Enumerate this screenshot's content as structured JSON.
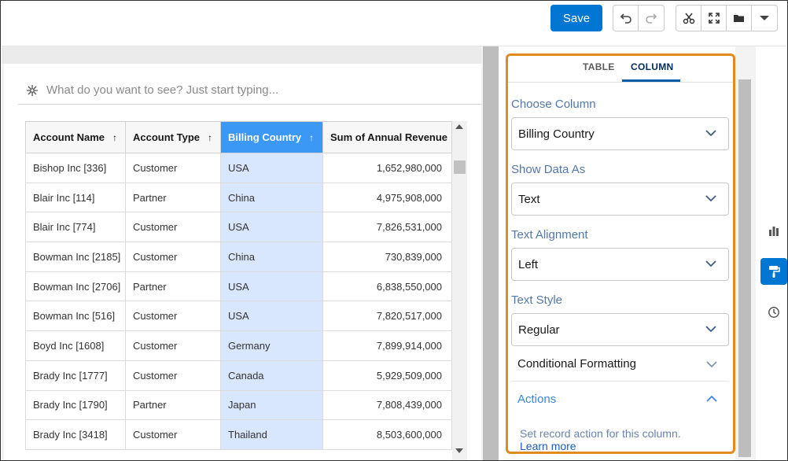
{
  "toolbar": {
    "save_label": "Save",
    "undo_icon": "undo-icon",
    "redo_icon": "redo-icon",
    "tools": [
      "cut-icon",
      "expand-icon",
      "folder-icon",
      "caret-down-icon"
    ]
  },
  "search": {
    "placeholder": "What do you want to see? Just start typing..."
  },
  "table": {
    "columns": [
      {
        "label": "Account Name",
        "sort": "↑"
      },
      {
        "label": "Account Type",
        "sort": "↑"
      },
      {
        "label": "Billing Country",
        "sort": "↑"
      },
      {
        "label": "Sum of Annual Revenue",
        "sort": ""
      }
    ],
    "rows": [
      [
        "Bishop Inc [336]",
        "Customer",
        "USA",
        "1,652,980,000"
      ],
      [
        "Blair Inc [114]",
        "Partner",
        "China",
        "4,975,908,000"
      ],
      [
        "Blair Inc [774]",
        "Customer",
        "USA",
        "7,826,531,000"
      ],
      [
        "Bowman Inc [2185]",
        "Customer",
        "China",
        "730,839,000"
      ],
      [
        "Bowman Inc [2706]",
        "Partner",
        "USA",
        "6,838,550,000"
      ],
      [
        "Bowman Inc [516]",
        "Customer",
        "USA",
        "7,820,517,000"
      ],
      [
        "Boyd Inc [1608]",
        "Customer",
        "Germany",
        "7,899,914,000"
      ],
      [
        "Brady Inc [1777]",
        "Customer",
        "Canada",
        "5,929,509,000"
      ],
      [
        "Brady Inc [1790]",
        "Partner",
        "Japan",
        "7,808,439,000"
      ],
      [
        "Brady Inc [3418]",
        "Customer",
        "Thailand",
        "8,503,600,000"
      ]
    ]
  },
  "panel": {
    "tabs": {
      "table": "TABLE",
      "column": "COLUMN"
    },
    "choose_column": {
      "label": "Choose Column",
      "value": "Billing Country"
    },
    "show_data_as": {
      "label": "Show Data As",
      "value": "Text"
    },
    "text_alignment": {
      "label": "Text Alignment",
      "value": "Left"
    },
    "text_style": {
      "label": "Text Style",
      "value": "Regular"
    },
    "conditional_formatting": "Conditional Formatting",
    "actions": "Actions",
    "actions_help": "Set record action for this column.",
    "learn_more": "Learn more"
  },
  "colors": {
    "accent": "#0176d3",
    "highlight_col": "#d8e6fe",
    "header_active": "#3b99f5",
    "panel_border": "#e08a20"
  }
}
